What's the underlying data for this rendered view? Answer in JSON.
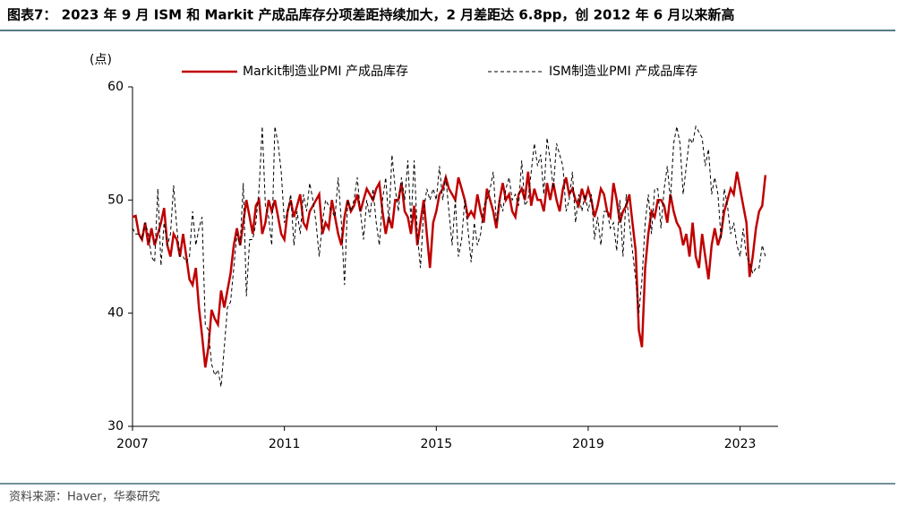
{
  "chart_data": {
    "type": "line",
    "title": "图表7：  2023 年 9 月 ISM 和 Markit 产成品库存分项差距持续加大，2 月差距达 6.8pp，创 2012 年 6 月以来新高",
    "y_unit": "(点)",
    "source": "资料来源：Haver，华泰研究",
    "xlim": [
      2007,
      2024
    ],
    "xticks": [
      2007,
      2011,
      2015,
      2019,
      2023
    ],
    "ylim": [
      30,
      60
    ],
    "yticks": [
      30,
      40,
      50,
      60
    ],
    "x": [
      2007,
      2007.083,
      2007.167,
      2007.25,
      2007.333,
      2007.417,
      2007.5,
      2007.583,
      2007.667,
      2007.75,
      2007.833,
      2007.917,
      2008,
      2008.083,
      2008.167,
      2008.25,
      2008.333,
      2008.417,
      2008.5,
      2008.583,
      2008.667,
      2008.75,
      2008.833,
      2008.917,
      2009,
      2009.083,
      2009.167,
      2009.25,
      2009.333,
      2009.417,
      2009.5,
      2009.583,
      2009.667,
      2009.75,
      2009.833,
      2009.917,
      2010,
      2010.083,
      2010.167,
      2010.25,
      2010.333,
      2010.417,
      2010.5,
      2010.583,
      2010.667,
      2010.75,
      2010.833,
      2010.917,
      2011,
      2011.083,
      2011.167,
      2011.25,
      2011.333,
      2011.417,
      2011.5,
      2011.583,
      2011.667,
      2011.75,
      2011.833,
      2011.917,
      2012,
      2012.083,
      2012.167,
      2012.25,
      2012.333,
      2012.417,
      2012.5,
      2012.583,
      2012.667,
      2012.75,
      2012.833,
      2012.917,
      2013,
      2013.083,
      2013.167,
      2013.25,
      2013.333,
      2013.417,
      2013.5,
      2013.583,
      2013.667,
      2013.75,
      2013.833,
      2013.917,
      2014,
      2014.083,
      2014.167,
      2014.25,
      2014.333,
      2014.417,
      2014.5,
      2014.583,
      2014.667,
      2014.75,
      2014.833,
      2014.917,
      2015,
      2015.083,
      2015.167,
      2015.25,
      2015.333,
      2015.417,
      2015.5,
      2015.583,
      2015.667,
      2015.75,
      2015.833,
      2015.917,
      2016,
      2016.083,
      2016.167,
      2016.25,
      2016.333,
      2016.417,
      2016.5,
      2016.583,
      2016.667,
      2016.75,
      2016.833,
      2016.917,
      2017,
      2017.083,
      2017.167,
      2017.25,
      2017.333,
      2017.417,
      2017.5,
      2017.583,
      2017.667,
      2017.75,
      2017.833,
      2017.917,
      2018,
      2018.083,
      2018.167,
      2018.25,
      2018.333,
      2018.417,
      2018.5,
      2018.583,
      2018.667,
      2018.75,
      2018.833,
      2018.917,
      2019,
      2019.083,
      2019.167,
      2019.25,
      2019.333,
      2019.417,
      2019.5,
      2019.583,
      2019.667,
      2019.75,
      2019.833,
      2019.917,
      2020,
      2020.083,
      2020.167,
      2020.25,
      2020.333,
      2020.417,
      2020.5,
      2020.583,
      2020.667,
      2020.75,
      2020.833,
      2020.917,
      2021,
      2021.083,
      2021.167,
      2021.25,
      2021.333,
      2021.417,
      2021.5,
      2021.583,
      2021.667,
      2021.75,
      2021.833,
      2021.917,
      2022,
      2022.083,
      2022.167,
      2022.25,
      2022.333,
      2022.417,
      2022.5,
      2022.583,
      2022.667,
      2022.75,
      2022.833,
      2022.917,
      2023,
      2023.083,
      2023.167,
      2023.25,
      2023.333,
      2023.417,
      2023.5,
      2023.583,
      2023.667
    ],
    "series": [
      {
        "name": "Markit制造业PMI 产成品库存",
        "color": "#c00000",
        "line_style": "solid",
        "values": [
          48.5,
          48.6,
          47,
          46.5,
          48,
          46,
          47.5,
          46,
          47,
          48,
          49.3,
          46,
          45,
          47,
          46.5,
          45,
          47,
          45,
          43,
          42.5,
          44,
          40.5,
          38,
          35.2,
          37,
          40.3,
          39.5,
          39,
          42,
          40.5,
          42,
          43.5,
          46,
          47.5,
          46,
          48,
          50,
          48.5,
          47,
          49.5,
          50,
          47,
          48,
          50,
          49,
          50,
          48.5,
          47,
          46.5,
          49,
          50,
          48.5,
          49.5,
          50.5,
          48,
          47.5,
          49,
          49.5,
          50,
          50.5,
          47,
          48,
          47.5,
          50,
          48.5,
          47,
          46,
          48.5,
          50,
          49,
          49.5,
          50.5,
          49,
          50,
          51,
          50.5,
          50,
          51,
          51.5,
          49,
          47,
          48.5,
          47.5,
          50,
          50,
          51.5,
          49,
          48.5,
          47,
          49.5,
          46,
          48,
          50,
          47,
          44,
          48,
          49,
          50.5,
          51,
          52,
          51,
          50.5,
          50,
          52,
          51,
          50,
          48.5,
          49,
          48.5,
          50.5,
          49,
          48,
          51,
          50,
          49,
          47.5,
          50,
          51.5,
          50,
          50.5,
          49,
          48.5,
          50.5,
          51,
          50,
          52.5,
          49.5,
          51,
          50,
          50,
          49,
          51.5,
          50,
          51.5,
          50,
          49,
          51,
          52,
          50.5,
          51,
          50,
          49.5,
          51,
          50,
          51,
          50,
          48.5,
          49.5,
          51,
          50.5,
          49,
          48.5,
          51.5,
          50,
          48,
          49,
          49.5,
          50.5,
          48,
          45.5,
          38.5,
          37,
          44,
          47,
          49,
          48.5,
          50,
          50,
          49.5,
          48,
          50.5,
          49,
          48,
          47.5,
          46,
          47,
          45,
          48,
          45,
          44,
          47,
          45,
          43,
          46,
          47.5,
          46,
          47,
          49,
          50,
          51,
          50.5,
          52.5,
          51,
          49.5,
          48,
          43.2,
          45,
          47.5,
          49,
          49.5,
          52.2
        ]
      },
      {
        "name": "ISM制造业PMI 产成品库存",
        "color": "#000000",
        "line_style": "dashed",
        "values": [
          47.5,
          47,
          47,
          46.5,
          48,
          47,
          45,
          44.5,
          51,
          44.2,
          48,
          46,
          47,
          51.3,
          47.5,
          45,
          45,
          44.5,
          45,
          49,
          46,
          47.5,
          48.5,
          39,
          38.5,
          35.5,
          34.5,
          35,
          33.5,
          37,
          40.5,
          41,
          44,
          47,
          46,
          51.5,
          41.5,
          46.5,
          46.5,
          48,
          51,
          56.5,
          49.5,
          48.5,
          46,
          56.5,
          55,
          52.5,
          48,
          49,
          50.5,
          46,
          49,
          47,
          50.5,
          49,
          51.5,
          50,
          48,
          45,
          48,
          50,
          49.5,
          49,
          48.5,
          52,
          48,
          42.5,
          50,
          49,
          50,
          52,
          49,
          46.5,
          50,
          48.5,
          51,
          48,
          46,
          50,
          52,
          48,
          54,
          51,
          49,
          52,
          50,
          53.5,
          48,
          53.5,
          47,
          44,
          49,
          51,
          50,
          51,
          50,
          53,
          50,
          52,
          49,
          46,
          50,
          45,
          46.5,
          50,
          47.5,
          44.5,
          48,
          46,
          47,
          49.5,
          50,
          51,
          52.5,
          48,
          50,
          49,
          51,
          52,
          50,
          50.5,
          49.5,
          53.5,
          49.5,
          50,
          52.5,
          55,
          53,
          54,
          50.5,
          55.5,
          53.5,
          51,
          55,
          54,
          53,
          49,
          50,
          52.5,
          48,
          50.5,
          49,
          50.5,
          49,
          50.5,
          46.5,
          48.5,
          46,
          49,
          49,
          47.5,
          48,
          45.5,
          50,
          45,
          50.5,
          48,
          45.5,
          43,
          40,
          43,
          48,
          50.5,
          47,
          51,
          51,
          47.5,
          51,
          53,
          50,
          55,
          56.5,
          55,
          50.5,
          53,
          55.5,
          55,
          56.5,
          56,
          55.5,
          53,
          54.5,
          50.5,
          52,
          50.5,
          46.5,
          51,
          49.5,
          47,
          48,
          46,
          45,
          47.5,
          45,
          44.5,
          43.5,
          44,
          44,
          46,
          45
        ]
      }
    ]
  }
}
